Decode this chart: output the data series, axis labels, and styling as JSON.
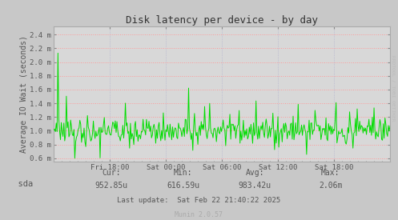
{
  "title": "Disk latency per device - by day",
  "ylabel": "Average IO Wait (seconds)",
  "right_label": "RRDTOOL / TOBI OETIKER",
  "bg_color": "#c8c8c8",
  "plot_bg_color": "#d8d8d8",
  "grid_color_h": "#ff9999",
  "grid_color_v": "#aaaacc",
  "line_color": "#00dd00",
  "title_color": "#333333",
  "label_color": "#555555",
  "x_ticks_labels": [
    "Fri 18:00",
    "Sat 00:00",
    "Sat 06:00",
    "Sat 12:00",
    "Sat 18:00"
  ],
  "y_ticks": [
    0.6,
    0.8,
    1.0,
    1.2,
    1.4,
    1.6,
    1.8,
    2.0,
    2.2,
    2.4
  ],
  "y_tick_labels": [
    "0.6 m",
    "0.8 m",
    "1.0 m",
    "1.2 m",
    "1.4 m",
    "1.6 m",
    "1.8 m",
    "2.0 m",
    "2.2 m",
    "2.4 m"
  ],
  "ylim": [
    0.55,
    2.52
  ],
  "legend_label": "sda",
  "legend_color": "#00cc00",
  "cur_label": "Cur:",
  "min_label": "Min:",
  "avg_label": "Avg:",
  "max_label": "Max:",
  "cur_val": "952.85u",
  "min_val": "616.59u",
  "avg_val": "983.42u",
  "max_val": "2.06m",
  "last_update": "Last update:  Sat Feb 22 21:40:22 2025",
  "munin_version": "Munin 2.0.57",
  "seed": 42,
  "n_points": 400
}
